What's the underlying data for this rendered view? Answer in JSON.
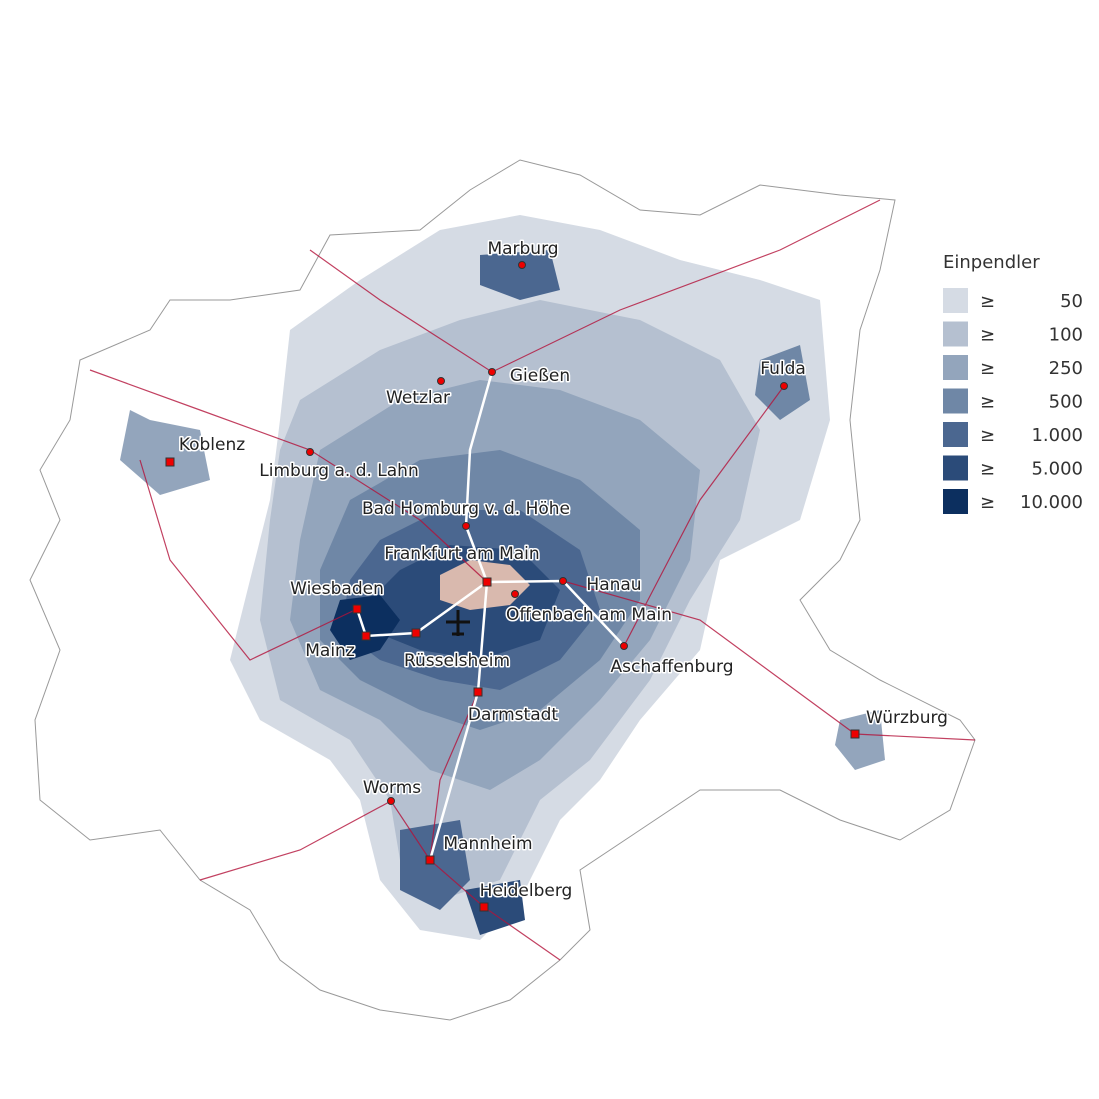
{
  "legend": {
    "title": "Einpendler",
    "items": [
      {
        "symbol": "≥",
        "label": "50",
        "color": "#d5dbe4"
      },
      {
        "symbol": "≥",
        "label": "100",
        "color": "#b5c0d0"
      },
      {
        "symbol": "≥",
        "label": "250",
        "color": "#93a5bc"
      },
      {
        "symbol": "≥",
        "label": "500",
        "color": "#6f87a6"
      },
      {
        "symbol": "≥",
        "label": "1.000",
        "color": "#4b6790"
      },
      {
        "symbol": "≥",
        "label": "5.000",
        "color": "#2b4b79"
      },
      {
        "symbol": "≥",
        "label": "10.000",
        "color": "#0c2f5f"
      }
    ]
  },
  "cities": [
    {
      "name": "Marburg"
    },
    {
      "name": "Gießen"
    },
    {
      "name": "Wetzlar"
    },
    {
      "name": "Fulda"
    },
    {
      "name": "Koblenz"
    },
    {
      "name": "Limburg a. d. Lahn"
    },
    {
      "name": "Bad Homburg v. d. Höhe"
    },
    {
      "name": "Frankfurt am Main"
    },
    {
      "name": "Hanau"
    },
    {
      "name": "Wiesbaden"
    },
    {
      "name": "Offenbach am Main"
    },
    {
      "name": "Mainz"
    },
    {
      "name": "Rüsselsheim"
    },
    {
      "name": "Aschaffenburg"
    },
    {
      "name": "Darmstadt"
    },
    {
      "name": "Würzburg"
    },
    {
      "name": "Worms"
    },
    {
      "name": "Mannheim"
    },
    {
      "name": "Heidelberg"
    }
  ]
}
